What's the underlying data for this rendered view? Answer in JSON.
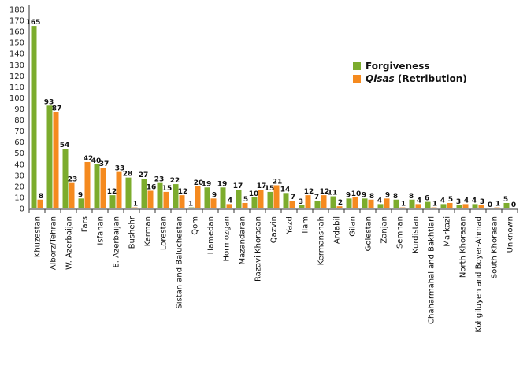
{
  "chart_data": {
    "type": "bar",
    "title": "",
    "xlabel": "",
    "ylabel": "",
    "ylim": [
      0,
      180
    ],
    "yticks": [
      0,
      10,
      20,
      30,
      40,
      50,
      60,
      70,
      80,
      90,
      100,
      110,
      120,
      130,
      140,
      150,
      160,
      170,
      180
    ],
    "grid": false,
    "legend_position": "top-right",
    "categories": [
      "Khuzestan",
      "Alborz/Tehran",
      "W. Azerbaijan",
      "Fars",
      "Isfahan",
      "E. Azerbaijan",
      "Bushehr",
      "Kerman",
      "Lorestan",
      "Sistan and Baluchestan",
      "Qom",
      "Hamedan",
      "Hormozgan",
      "Mazandaran",
      "Razavi Khorasan",
      "Qazvin",
      "Yazd",
      "Ilam",
      "Kermanshah",
      "Ardabil",
      "Gilan",
      "Golestan",
      "Zanjan",
      "Semnan",
      "Kurdistan",
      "Chaharmahal and Bakhtiari",
      "Markazi",
      "North Khorasan",
      "Kohgiluyeh and Boyer-Ahmad",
      "South Khorasan",
      "Unknown"
    ],
    "series": [
      {
        "name": "Forgiveness",
        "color": "#7cac2d",
        "values": [
          165,
          93,
          54,
          9,
          40,
          12,
          28,
          27,
          23,
          22,
          1,
          19,
          19,
          17,
          10,
          15,
          14,
          3,
          7,
          11,
          9,
          9,
          4,
          8,
          8,
          6,
          4,
          3,
          4,
          0,
          5
        ]
      },
      {
        "name": "Qisas (Retribution)",
        "name_italic_part": "Qisas",
        "name_rest": " (Retribution)",
        "color": "#f58a1f",
        "values": [
          8,
          87,
          23,
          42,
          37,
          33,
          1,
          16,
          15,
          12,
          20,
          9,
          4,
          5,
          17,
          21,
          7,
          12,
          12,
          2,
          10,
          8,
          9,
          1,
          4,
          1,
          5,
          4,
          3,
          1,
          0
        ]
      }
    ]
  },
  "legend": {
    "items": [
      {
        "label": "Forgiveness",
        "color": "#7cac2d"
      },
      {
        "label_italic": "Qisas",
        "label_rest": " (Retribution)",
        "color": "#f58a1f"
      }
    ]
  }
}
